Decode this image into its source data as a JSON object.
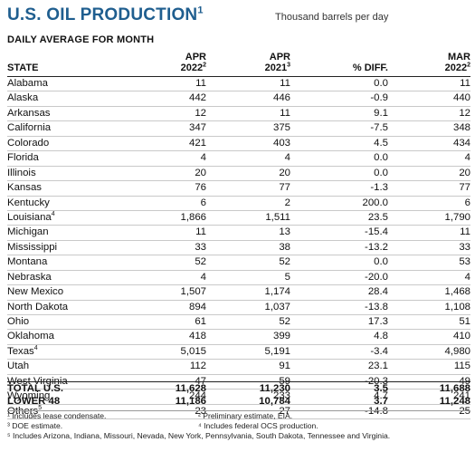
{
  "title": {
    "text": "U.S. OIL PRODUCTION",
    "sup": "1"
  },
  "units": "Thousand barrels per day",
  "subtitle": "DAILY AVERAGE FOR MONTH",
  "columns": {
    "state": "STATE",
    "c1": {
      "line1": "APR",
      "line2": "2022",
      "sup": "2"
    },
    "c2": {
      "line1": "APR",
      "line2": "2021",
      "sup": "3"
    },
    "c3": {
      "line1": "",
      "line2": "% DIFF.",
      "sup": ""
    },
    "c4": {
      "line1": "MAR",
      "line2": "2022",
      "sup": "2"
    }
  },
  "rows": [
    {
      "state": "Alabama",
      "sup": "",
      "apr2022": "11",
      "apr2021": "11",
      "diff": "0.0",
      "mar2022": "11"
    },
    {
      "state": "Alaska",
      "sup": "",
      "apr2022": "442",
      "apr2021": "446",
      "diff": "-0.9",
      "mar2022": "440"
    },
    {
      "state": "Arkansas",
      "sup": "",
      "apr2022": "12",
      "apr2021": "11",
      "diff": "9.1",
      "mar2022": "12"
    },
    {
      "state": "California",
      "sup": "",
      "apr2022": "347",
      "apr2021": "375",
      "diff": "-7.5",
      "mar2022": "348"
    },
    {
      "state": "Colorado",
      "sup": "",
      "apr2022": "421",
      "apr2021": "403",
      "diff": "4.5",
      "mar2022": "434"
    },
    {
      "state": "Florida",
      "sup": "",
      "apr2022": "4",
      "apr2021": "4",
      "diff": "0.0",
      "mar2022": "4"
    },
    {
      "state": "Illinois",
      "sup": "",
      "apr2022": "20",
      "apr2021": "20",
      "diff": "0.0",
      "mar2022": "20"
    },
    {
      "state": "Kansas",
      "sup": "",
      "apr2022": "76",
      "apr2021": "77",
      "diff": "-1.3",
      "mar2022": "77"
    },
    {
      "state": "Kentucky",
      "sup": "",
      "apr2022": "6",
      "apr2021": "2",
      "diff": "200.0",
      "mar2022": "6"
    },
    {
      "state": "Louisiana",
      "sup": "4",
      "apr2022": "1,866",
      "apr2021": "1,511",
      "diff": "23.5",
      "mar2022": "1,790"
    },
    {
      "state": "Michigan",
      "sup": "",
      "apr2022": "11",
      "apr2021": "13",
      "diff": "-15.4",
      "mar2022": "11"
    },
    {
      "state": "Mississippi",
      "sup": "",
      "apr2022": "33",
      "apr2021": "38",
      "diff": "-13.2",
      "mar2022": "33"
    },
    {
      "state": "Montana",
      "sup": "",
      "apr2022": "52",
      "apr2021": "52",
      "diff": "0.0",
      "mar2022": "53"
    },
    {
      "state": "Nebraska",
      "sup": "",
      "apr2022": "4",
      "apr2021": "5",
      "diff": "-20.0",
      "mar2022": "4"
    },
    {
      "state": "New Mexico",
      "sup": "",
      "apr2022": "1,507",
      "apr2021": "1,174",
      "diff": "28.4",
      "mar2022": "1,468"
    },
    {
      "state": "North Dakota",
      "sup": "",
      "apr2022": "894",
      "apr2021": "1,037",
      "diff": "-13.8",
      "mar2022": "1,108"
    },
    {
      "state": "Ohio",
      "sup": "",
      "apr2022": "61",
      "apr2021": "52",
      "diff": "17.3",
      "mar2022": "51"
    },
    {
      "state": "Oklahoma",
      "sup": "",
      "apr2022": "418",
      "apr2021": "399",
      "diff": "4.8",
      "mar2022": "410"
    },
    {
      "state": "Texas",
      "sup": "4",
      "apr2022": "5,015",
      "apr2021": "5,191",
      "diff": "-3.4",
      "mar2022": "4,980"
    },
    {
      "state": "Utah",
      "sup": "",
      "apr2022": "112",
      "apr2021": "91",
      "diff": "23.1",
      "mar2022": "115"
    },
    {
      "state": "West Virginia",
      "sup": "",
      "apr2022": "47",
      "apr2021": "59",
      "diff": "-20.3",
      "mar2022": "49"
    },
    {
      "state": "Wyoming",
      "sup": "",
      "apr2022": "244",
      "apr2021": "233",
      "diff": "4.7",
      "mar2022": "241"
    },
    {
      "state": "Others",
      "sup": "5",
      "apr2022": "23",
      "apr2021": "27",
      "diff": "-14.8",
      "mar2022": "25"
    }
  ],
  "totals": [
    {
      "state": "TOTAL U.S.",
      "apr2022": "11,628",
      "apr2021": "11,230",
      "diff": "3.5",
      "mar2022": "11,688"
    },
    {
      "state": "LOWER 48",
      "apr2022": "11,186",
      "apr2021": "10,784",
      "diff": "3.7",
      "mar2022": "11,248"
    }
  ],
  "footnotes": {
    "f1": "¹ Includes lease condensate.",
    "f2": "² Preliminary estimate, EIA.",
    "f3": "³ DOE estimate.",
    "f4": "⁴ Includes federal OCS production.",
    "f5": "⁵ Includes Arizona, Indiana, Missouri, Nevada, New York, Pennsylvania, South Dakota, Tennessee and Virginia."
  }
}
